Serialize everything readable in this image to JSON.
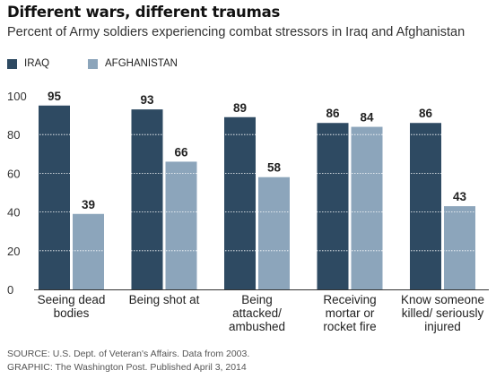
{
  "title": "Different wars, different traumas",
  "subtitle": "Percent of Army soldiers experiencing combat stressors in Iraq and Afghanistan",
  "legend": [
    {
      "label": "IRAQ",
      "color": "#2e4a62"
    },
    {
      "label": "AFGHANISTAN",
      "color": "#8ca5bb"
    }
  ],
  "chart_data": {
    "type": "bar",
    "categories": [
      [
        "Seeing dead",
        "bodies"
      ],
      [
        "Being shot at"
      ],
      [
        "Being",
        "attacked/",
        "ambushed"
      ],
      [
        "Receiving",
        "mortar or",
        "rocket fire"
      ],
      [
        "Know someone",
        "killed/ seriously",
        "injured"
      ]
    ],
    "series": [
      {
        "name": "IRAQ",
        "values": [
          95,
          93,
          89,
          86,
          86
        ],
        "color": "#2e4a62"
      },
      {
        "name": "AFGHANISTAN",
        "values": [
          39,
          66,
          58,
          84,
          43
        ],
        "color": "#8ca5bb"
      }
    ],
    "ylim": [
      0,
      100
    ],
    "yticks": [
      0,
      20,
      40,
      60,
      80,
      100
    ],
    "grid": true,
    "legend_position": "top-left"
  },
  "source_lines": [
    "SOURCE: U.S. Dept. of Veteran's Affairs. Data from 2003.",
    "GRAPHIC: The Washington Post. Published April 3, 2014"
  ]
}
